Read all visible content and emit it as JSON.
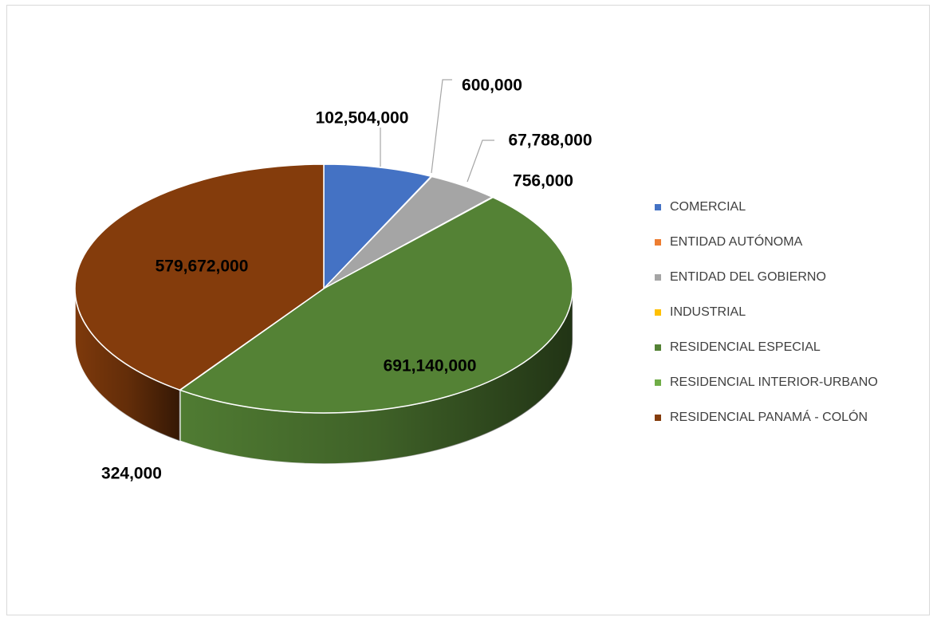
{
  "chart_data": {
    "type": "pie",
    "title": "",
    "categories": [
      "COMERCIAL",
      "ENTIDAD AUTÓNOMA",
      "ENTIDAD DEL GOBIERNO",
      "INDUSTRIAL",
      "RESIDENCIAL ESPECIAL",
      "RESIDENCIAL INTERIOR-URBANO",
      "RESIDENCIAL PANAMÁ - COLÓN"
    ],
    "values": [
      102504000,
      600000,
      67788000,
      756000,
      691140000,
      324000,
      579672000
    ],
    "labels": [
      "102,504,000",
      "600,000",
      "67,788,000",
      "756,000",
      "691,140,000",
      "324,000",
      "579,672,000"
    ],
    "colors": [
      "#4472C4",
      "#ED7D31",
      "#A5A5A5",
      "#FFC000",
      "#548235",
      "#70AD47",
      "#843C0C"
    ],
    "legend_position": "right",
    "style": "3d"
  }
}
